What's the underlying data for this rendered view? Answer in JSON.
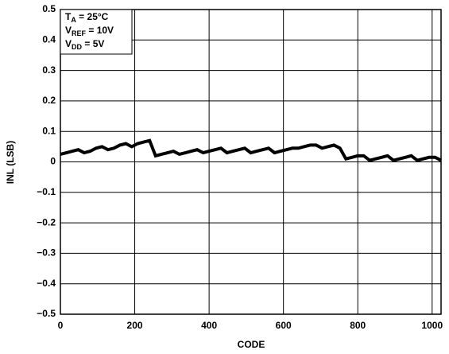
{
  "chart_data": {
    "type": "line",
    "xlabel": "CODE",
    "ylabel": "INL (LSB)",
    "annotations": [
      [
        "T",
        "A",
        " = 25°C"
      ],
      [
        "V",
        "REF",
        " = 10V"
      ],
      [
        "V",
        "DD",
        " = 5V"
      ]
    ],
    "x": [
      0,
      16,
      32,
      48,
      64,
      80,
      96,
      112,
      128,
      144,
      160,
      176,
      192,
      208,
      224,
      240,
      256,
      272,
      288,
      304,
      320,
      336,
      352,
      368,
      384,
      400,
      416,
      432,
      448,
      464,
      480,
      496,
      512,
      528,
      544,
      560,
      576,
      592,
      608,
      624,
      640,
      656,
      672,
      688,
      704,
      720,
      736,
      752,
      768,
      784,
      800,
      816,
      832,
      848,
      864,
      880,
      896,
      912,
      928,
      944,
      960,
      976,
      992,
      1008,
      1024
    ],
    "series": [
      {
        "color": "#000000",
        "values": [
          0.025,
          0.03,
          0.035,
          0.04,
          0.03,
          0.035,
          0.045,
          0.05,
          0.04,
          0.045,
          0.055,
          0.06,
          0.05,
          0.06,
          0.065,
          0.07,
          0.02,
          0.025,
          0.03,
          0.035,
          0.025,
          0.03,
          0.035,
          0.04,
          0.03,
          0.035,
          0.04,
          0.045,
          0.03,
          0.035,
          0.04,
          0.045,
          0.03,
          0.035,
          0.04,
          0.045,
          0.03,
          0.035,
          0.04,
          0.045,
          0.045,
          0.05,
          0.055,
          0.055,
          0.045,
          0.05,
          0.055,
          0.045,
          0.01,
          0.015,
          0.02,
          0.02,
          0.005,
          0.01,
          0.015,
          0.02,
          0.005,
          0.01,
          0.015,
          0.02,
          0.005,
          0.01,
          0.015,
          0.015,
          0.005
        ]
      }
    ],
    "xlim": [
      0,
      1024
    ],
    "xticks": [
      0,
      200,
      400,
      600,
      800,
      1000
    ],
    "ylim": [
      -0.5,
      0.5
    ],
    "yticks": [
      {
        "value": -0.5,
        "label": "−0.5"
      },
      {
        "value": -0.4,
        "label": "−0.4"
      },
      {
        "value": -0.3,
        "label": "−0.3"
      },
      {
        "value": -0.2,
        "label": "−0.2"
      },
      {
        "value": -0.1,
        "label": "−0.1"
      },
      0,
      0.1,
      0.2,
      0.3,
      0.4,
      0.5
    ],
    "grid": true
  }
}
